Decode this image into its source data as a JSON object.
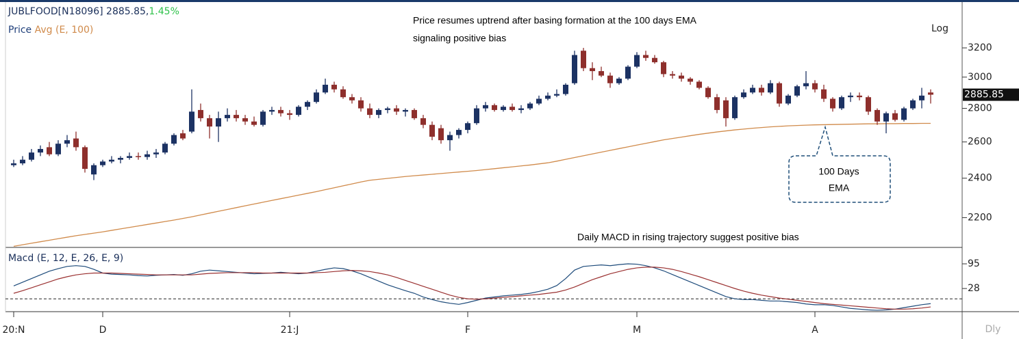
{
  "chart_data": [
    {
      "type": "candlestick",
      "title": "JUBLFOOD[N18096] 2885.85,",
      "change": "1.45%",
      "legend": [
        {
          "name": "Price",
          "color": "#1f3f7a"
        },
        {
          "name": "Avg (E, 100)",
          "color": "#d08a4a"
        }
      ],
      "scale_label": "Log",
      "log": true,
      "annotations": [
        "Price resumes uptrend  after basing formation at the 100 days EMA",
        "signaling positive bias",
        "Daily MACD in rising trajectory suggest positive bias"
      ],
      "callout": [
        "100 Days",
        "EMA"
      ],
      "up_color": "#1c3263",
      "down_color": "#8e2f2c",
      "ylim": [
        2060,
        3530
      ],
      "yticks": [
        2200,
        2400,
        2600,
        2800,
        3000,
        3200
      ],
      "ohlc": [
        [
          2470,
          2500,
          2460,
          2480
        ],
        [
          2480,
          2520,
          2470,
          2500
        ],
        [
          2500,
          2560,
          2490,
          2540
        ],
        [
          2540,
          2580,
          2520,
          2560
        ],
        [
          2570,
          2600,
          2520,
          2530
        ],
        [
          2530,
          2610,
          2520,
          2590
        ],
        [
          2590,
          2640,
          2570,
          2610
        ],
        [
          2620,
          2660,
          2550,
          2570
        ],
        [
          2570,
          2580,
          2430,
          2450
        ],
        [
          2420,
          2480,
          2390,
          2470
        ],
        [
          2470,
          2500,
          2460,
          2490
        ],
        [
          2490,
          2520,
          2480,
          2500
        ],
        [
          2500,
          2520,
          2480,
          2510
        ],
        [
          2510,
          2540,
          2500,
          2520
        ],
        [
          2520,
          2540,
          2500,
          2515
        ],
        [
          2515,
          2550,
          2500,
          2530
        ],
        [
          2530,
          2560,
          2510,
          2540
        ],
        [
          2540,
          2600,
          2530,
          2590
        ],
        [
          2590,
          2650,
          2580,
          2640
        ],
        [
          2650,
          2670,
          2610,
          2620
        ],
        [
          2660,
          2920,
          2650,
          2780
        ],
        [
          2790,
          2830,
          2720,
          2740
        ],
        [
          2740,
          2760,
          2620,
          2690
        ],
        [
          2690,
          2780,
          2600,
          2740
        ],
        [
          2740,
          2800,
          2720,
          2760
        ],
        [
          2760,
          2790,
          2720,
          2740
        ],
        [
          2740,
          2760,
          2700,
          2720
        ],
        [
          2720,
          2750,
          2690,
          2700
        ],
        [
          2700,
          2790,
          2690,
          2780
        ],
        [
          2780,
          2810,
          2760,
          2790
        ],
        [
          2790,
          2810,
          2750,
          2770
        ],
        [
          2770,
          2790,
          2730,
          2760
        ],
        [
          2760,
          2820,
          2750,
          2810
        ],
        [
          2810,
          2850,
          2790,
          2840
        ],
        [
          2840,
          2920,
          2830,
          2900
        ],
        [
          2900,
          2990,
          2890,
          2950
        ],
        [
          2950,
          2970,
          2900,
          2920
        ],
        [
          2920,
          2940,
          2860,
          2870
        ],
        [
          2870,
          2890,
          2830,
          2850
        ],
        [
          2850,
          2870,
          2780,
          2800
        ],
        [
          2800,
          2830,
          2740,
          2760
        ],
        [
          2760,
          2800,
          2740,
          2790
        ],
        [
          2790,
          2810,
          2770,
          2800
        ],
        [
          2800,
          2820,
          2760,
          2780
        ],
        [
          2780,
          2800,
          2750,
          2790
        ],
        [
          2790,
          2800,
          2730,
          2740
        ],
        [
          2740,
          2760,
          2680,
          2700
        ],
        [
          2700,
          2720,
          2610,
          2630
        ],
        [
          2680,
          2700,
          2590,
          2610
        ],
        [
          2610,
          2660,
          2550,
          2640
        ],
        [
          2640,
          2680,
          2620,
          2670
        ],
        [
          2670,
          2720,
          2650,
          2710
        ],
        [
          2710,
          2820,
          2700,
          2800
        ],
        [
          2800,
          2840,
          2780,
          2820
        ],
        [
          2820,
          2830,
          2780,
          2790
        ],
        [
          2790,
          2820,
          2780,
          2810
        ],
        [
          2810,
          2830,
          2780,
          2790
        ],
        [
          2790,
          2820,
          2770,
          2800
        ],
        [
          2800,
          2840,
          2790,
          2830
        ],
        [
          2830,
          2880,
          2820,
          2860
        ],
        [
          2860,
          2900,
          2850,
          2880
        ],
        [
          2880,
          2920,
          2870,
          2890
        ],
        [
          2890,
          2960,
          2880,
          2950
        ],
        [
          2960,
          3180,
          2950,
          3150
        ],
        [
          3180,
          3200,
          3040,
          3060
        ],
        [
          3060,
          3100,
          2980,
          3040
        ],
        [
          3040,
          3070,
          3000,
          3010
        ],
        [
          3010,
          3030,
          2930,
          2960
        ],
        [
          2960,
          3000,
          2950,
          2990
        ],
        [
          2990,
          3080,
          2980,
          3070
        ],
        [
          3070,
          3170,
          3060,
          3150
        ],
        [
          3150,
          3180,
          3110,
          3130
        ],
        [
          3130,
          3150,
          3090,
          3100
        ],
        [
          3100,
          3110,
          3000,
          3020
        ],
        [
          3020,
          3040,
          2990,
          3010
        ],
        [
          3010,
          3030,
          2970,
          2990
        ],
        [
          2990,
          3000,
          2950,
          2970
        ],
        [
          2970,
          2980,
          2920,
          2930
        ],
        [
          2930,
          2940,
          2860,
          2870
        ],
        [
          2870,
          2890,
          2770,
          2790
        ],
        [
          2850,
          2870,
          2690,
          2740
        ],
        [
          2740,
          2880,
          2730,
          2870
        ],
        [
          2870,
          2920,
          2860,
          2900
        ],
        [
          2900,
          2950,
          2890,
          2930
        ],
        [
          2930,
          2950,
          2880,
          2900
        ],
        [
          2900,
          2980,
          2890,
          2960
        ],
        [
          2960,
          2970,
          2810,
          2830
        ],
        [
          2830,
          2890,
          2820,
          2880
        ],
        [
          2880,
          2950,
          2870,
          2940
        ],
        [
          2940,
          3040,
          2920,
          2960
        ],
        [
          2960,
          2980,
          2900,
          2920
        ],
        [
          2920,
          2950,
          2840,
          2860
        ],
        [
          2860,
          2870,
          2780,
          2800
        ],
        [
          2800,
          2880,
          2790,
          2870
        ],
        [
          2870,
          2900,
          2840,
          2880
        ],
        [
          2880,
          2900,
          2850,
          2870
        ],
        [
          2870,
          2880,
          2760,
          2780
        ],
        [
          2790,
          2800,
          2700,
          2720
        ],
        [
          2720,
          2780,
          2650,
          2770
        ],
        [
          2770,
          2790,
          2720,
          2730
        ],
        [
          2730,
          2810,
          2720,
          2800
        ],
        [
          2800,
          2860,
          2790,
          2850
        ],
        [
          2850,
          2930,
          2800,
          2880
        ],
        [
          2900,
          2920,
          2830,
          2885.85
        ]
      ],
      "ema": [
        2065,
        2072,
        2079,
        2086,
        2093,
        2100,
        2107,
        2114,
        2120,
        2126,
        2132,
        2139,
        2146,
        2153,
        2160,
        2167,
        2174,
        2181,
        2188,
        2196,
        2204,
        2213,
        2222,
        2231,
        2240,
        2249,
        2258,
        2267,
        2276,
        2285,
        2294,
        2303,
        2312,
        2321,
        2330,
        2340,
        2350,
        2360,
        2370,
        2380,
        2389,
        2394,
        2399,
        2404,
        2409,
        2413,
        2417,
        2421,
        2425,
        2429,
        2433,
        2437,
        2441,
        2446,
        2451,
        2456,
        2461,
        2466,
        2471,
        2477,
        2483,
        2492,
        2502,
        2512,
        2522,
        2532,
        2542,
        2552,
        2562,
        2572,
        2582,
        2592,
        2602,
        2612,
        2620,
        2628,
        2636,
        2644,
        2651,
        2658,
        2664,
        2670,
        2675,
        2680,
        2684,
        2688,
        2691,
        2694,
        2696,
        2698,
        2700,
        2701,
        2702,
        2703,
        2704,
        2705,
        2706,
        2706,
        2707,
        2707,
        2708,
        2708,
        2709,
        2709
      ]
    },
    {
      "type": "line",
      "title": "Macd (E, 12, E, 26, E, 9)",
      "ylim": [
        -33,
        134
      ],
      "yticks": [
        95,
        28
      ],
      "hline": 0,
      "period_label": "Dly",
      "xticks": [
        {
          "value": 0,
          "label": "20:N"
        },
        {
          "value": 10,
          "label": "D"
        },
        {
          "value": 31,
          "label": "21:J"
        },
        {
          "value": 51,
          "label": "F"
        },
        {
          "value": 70,
          "label": "M"
        },
        {
          "value": 90,
          "label": "A"
        }
      ],
      "series": [
        {
          "color": "#1c4a7a",
          "values": [
            35,
            45,
            55,
            65,
            75,
            82,
            88,
            90,
            88,
            80,
            70,
            67,
            66,
            65,
            63,
            62,
            64,
            65,
            66,
            64,
            68,
            75,
            78,
            76,
            74,
            72,
            70,
            68,
            69,
            70,
            72,
            70,
            68,
            70,
            75,
            80,
            84,
            82,
            76,
            68,
            58,
            48,
            38,
            30,
            22,
            15,
            5,
            -2,
            -8,
            -12,
            -15,
            -10,
            -4,
            2,
            5,
            8,
            10,
            12,
            15,
            20,
            26,
            36,
            55,
            78,
            88,
            90,
            92,
            90,
            93,
            95,
            94,
            90,
            84,
            76,
            66,
            56,
            46,
            36,
            26,
            16,
            6,
            0,
            -2,
            -2,
            -4,
            -6,
            -6,
            -8,
            -10,
            -14,
            -16,
            -16,
            -18,
            -22,
            -26,
            -28,
            -30,
            -31,
            -30,
            -28,
            -24,
            -20,
            -16,
            -13
          ]
        },
        {
          "color": "#9a3030",
          "values": [
            15,
            22,
            30,
            38,
            46,
            54,
            60,
            65,
            68,
            70,
            70,
            70,
            69,
            68,
            67,
            66,
            65,
            65,
            65,
            65,
            65,
            67,
            69,
            70,
            71,
            71,
            71,
            71,
            70,
            70,
            70,
            70,
            70,
            70,
            71,
            72,
            74,
            76,
            77,
            76,
            74,
            70,
            65,
            58,
            50,
            42,
            34,
            26,
            18,
            10,
            4,
            0,
            -1,
            0,
            2,
            4,
            6,
            8,
            10,
            12,
            15,
            18,
            24,
            32,
            42,
            52,
            60,
            68,
            74,
            80,
            84,
            86,
            86,
            84,
            80,
            74,
            67,
            60,
            52,
            44,
            36,
            28,
            21,
            15,
            10,
            6,
            2,
            -1,
            -4,
            -7,
            -10,
            -13,
            -15,
            -17,
            -19,
            -21,
            -23,
            -25,
            -27,
            -28,
            -28,
            -27,
            -25,
            -22
          ]
        }
      ]
    }
  ]
}
